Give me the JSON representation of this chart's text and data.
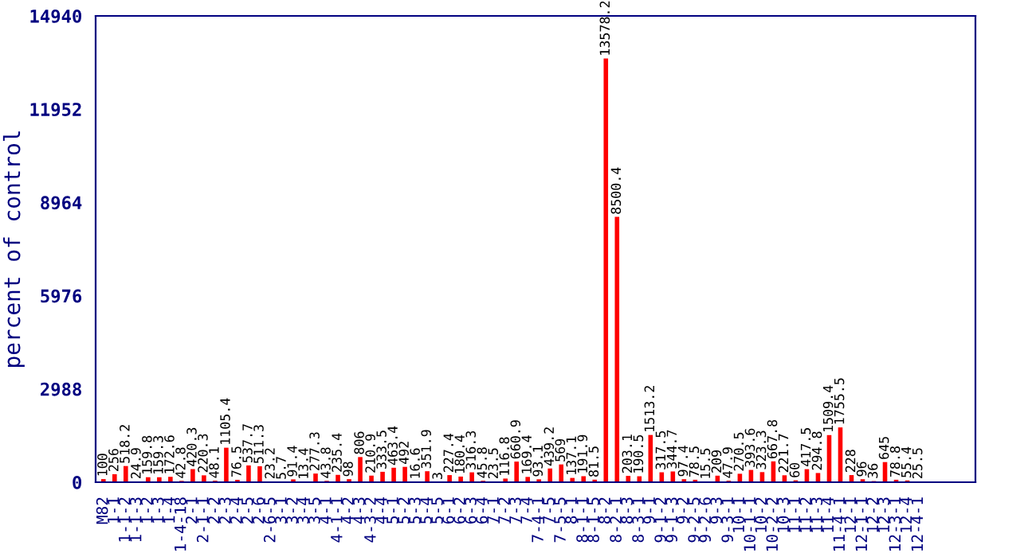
{
  "chart_data": {
    "type": "bar",
    "ylabel": "percent of control",
    "categories": [
      "M82",
      "1-1",
      "1-1-2",
      "1-1-3",
      "1-2",
      "1-3",
      "1-4",
      "1-4-18",
      "2-1",
      "2-1-1",
      "2-2",
      "2-3",
      "2-4",
      "2-5",
      "2-6",
      "2-6-5",
      "3-1",
      "3-2",
      "3-4",
      "3-5",
      "4-1",
      "4-1-1",
      "4-2",
      "4-3",
      "4-3-2",
      "4-4",
      "5-1",
      "5-2",
      "5-3",
      "5-4",
      "5-5",
      "6-1",
      "6-2",
      "6-3",
      "6-4",
      "7-1",
      "7-2",
      "7-3",
      "7-4",
      "7-4-1",
      "7-5",
      "7-5-5",
      "8-1",
      "8-1-1",
      "8-1-5",
      "8-2",
      "8-2-1",
      "8-3",
      "8-3-1",
      "9-1",
      "9-1-2",
      "9-1-3",
      "9-2",
      "9-2-5",
      "9-2-6",
      "9-3",
      "9-3-1",
      "10-1",
      "10-1-1",
      "10-2",
      "10-2-2",
      "10-3",
      "11-1",
      "11-2",
      "11-3",
      "11-4",
      "11-4-1",
      "12-1",
      "12-1-1",
      "12-2",
      "12-3",
      "12-3-1",
      "12-4",
      "12-4-1"
    ],
    "values": [
      100,
      256,
      518.2,
      24.9,
      159.8,
      159.3,
      172.6,
      42.8,
      420.3,
      220.3,
      48.1,
      1105.4,
      76.5,
      537.7,
      511.3,
      23.2,
      5.7,
      91.4,
      13.4,
      277.3,
      43.8,
      235.4,
      98,
      806,
      210.9,
      333.5,
      463.4,
      492,
      16.6,
      351.9,
      3,
      227.4,
      180.4,
      316.3,
      45.8,
      23.5,
      116.8,
      660.9,
      169.4,
      93.1,
      439.2,
      569,
      137.1,
      191.9,
      81.5,
      13578.2,
      8500.4,
      203.1,
      190.5,
      1513.2,
      317.5,
      344.7,
      97.4,
      78.5,
      15.5,
      209,
      47.9,
      270.5,
      393.6,
      323.3,
      667.8,
      221.7,
      60,
      417.5,
      294.8,
      1509.4,
      1755.5,
      228,
      96,
      36,
      645,
      78.8,
      55.4,
      25.5
    ],
    "color": "#ff0000",
    "ylim": [
      0,
      14940
    ],
    "yticks": [
      0,
      2988,
      5976,
      8964,
      11952,
      14940
    ],
    "data_labels": true,
    "grid": false,
    "legend": false
  }
}
